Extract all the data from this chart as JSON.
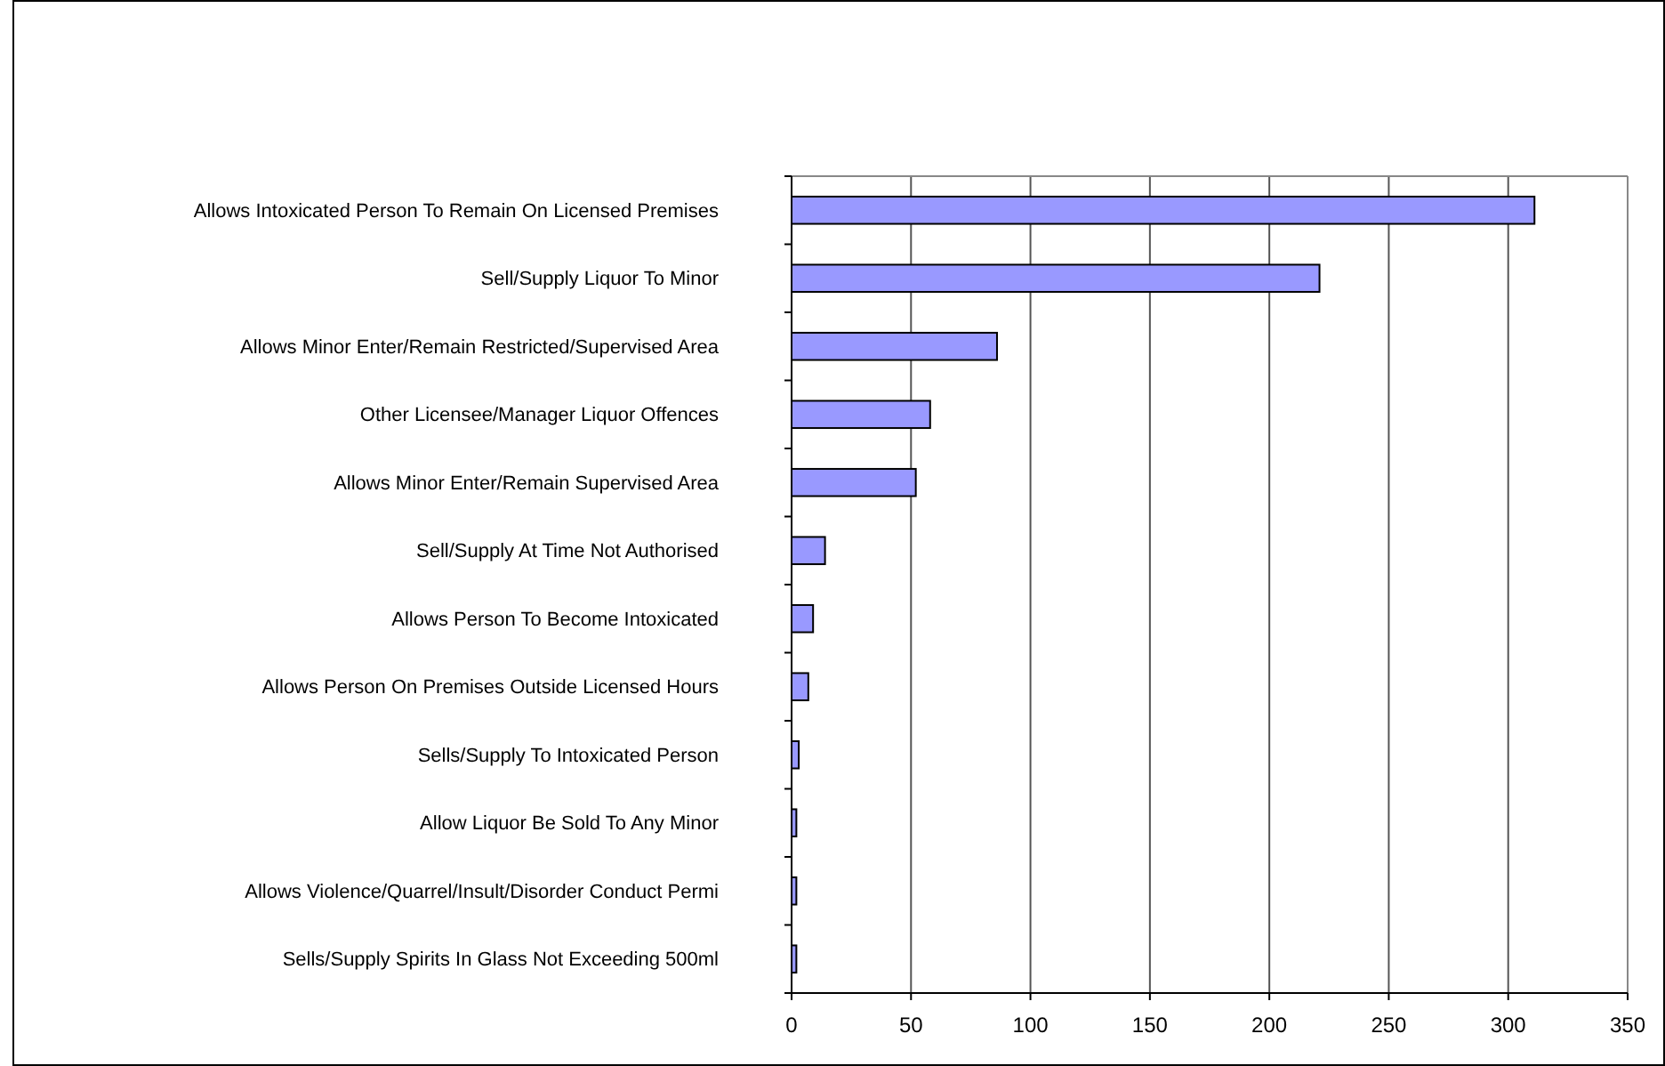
{
  "chart_data": {
    "type": "bar",
    "orientation": "horizontal",
    "categories": [
      "Allows Intoxicated Person To Remain On Licensed Premises",
      "Sell/Supply Liquor To Minor",
      "Allows Minor Enter/Remain Restricted/Supervised Area",
      "Other Licensee/Manager Liquor Offences",
      "Allows Minor Enter/Remain Supervised Area",
      "Sell/Supply At Time Not Authorised",
      "Allows Person To Become Intoxicated",
      "Allows Person On Premises Outside Licensed Hours",
      "Sells/Supply To Intoxicated Person",
      "Allow Liquor Be Sold To Any Minor",
      "Allows Violence/Quarrel/Insult/Disorder Conduct Permi",
      "Sells/Supply Spirits In Glass Not Exceeding 500ml"
    ],
    "values": [
      311,
      221,
      86,
      58,
      52,
      14,
      9,
      7,
      3,
      2,
      2,
      2
    ],
    "color": "#9999ff",
    "xlim": [
      0,
      350
    ],
    "xticks": [
      0,
      50,
      100,
      150,
      200,
      250,
      300,
      350
    ],
    "grid": "x"
  }
}
